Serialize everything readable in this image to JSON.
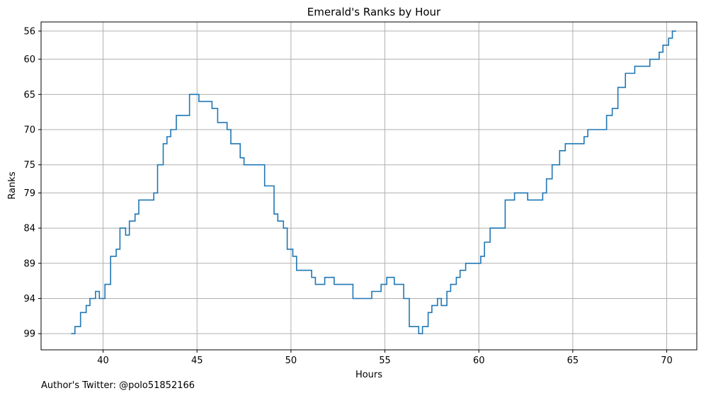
{
  "chart_data": {
    "type": "line",
    "step": "post",
    "title": "Emerald's Ranks by Hour",
    "xlabel": "Hours",
    "ylabel": "Ranks",
    "xlim": [
      36.7,
      71.6
    ],
    "ylim": [
      101.3,
      54.7
    ],
    "y_inverted": true,
    "grid": true,
    "line_color": "#1f77b4",
    "xticks": [
      40,
      45,
      50,
      55,
      60,
      65,
      70
    ],
    "yticks": [
      56,
      60,
      65,
      70,
      75,
      79,
      84,
      89,
      94,
      99
    ],
    "series": [
      {
        "x": [
          38.3,
          38.5,
          38.8,
          39.1,
          39.3,
          39.6,
          39.8,
          40.1,
          40.4,
          40.7,
          40.9,
          41.2,
          41.4,
          41.7,
          41.9,
          42.7,
          42.9,
          43.2,
          43.4,
          43.6,
          43.9,
          44.6,
          45.1,
          45.8,
          46.1,
          46.6,
          46.8,
          47.3,
          47.5,
          48.6,
          49.1,
          49.3,
          49.6,
          49.8,
          50.1,
          50.3,
          51.1,
          51.3,
          51.8,
          52.3,
          53.3,
          54.3,
          54.8,
          55.1,
          55.5,
          56.0,
          56.3,
          56.8,
          57.0,
          57.3,
          57.5,
          57.8,
          58.0,
          58.3,
          58.5,
          58.8,
          59.0,
          59.3,
          60.1,
          60.3,
          60.6,
          61.4,
          61.9,
          62.6,
          63.4,
          63.6,
          63.9,
          64.3,
          64.6,
          65.6,
          65.8,
          66.8,
          67.1,
          67.4,
          67.8,
          68.3,
          69.1,
          69.6,
          69.8,
          70.1,
          70.3,
          70.5
        ],
        "y": [
          99,
          98,
          96,
          95,
          94,
          93,
          94,
          92,
          88,
          87,
          84,
          85,
          83,
          82,
          80,
          79,
          75,
          72,
          71,
          70,
          68,
          65,
          66,
          67,
          69,
          70,
          72,
          74,
          75,
          78,
          82,
          83,
          84,
          87,
          88,
          90,
          91,
          92,
          91,
          92,
          94,
          93,
          92,
          91,
          92,
          94,
          98,
          99,
          98,
          96,
          95,
          94,
          95,
          93,
          92,
          91,
          90,
          89,
          88,
          86,
          84,
          80,
          79,
          80,
          79,
          77,
          75,
          73,
          72,
          71,
          70,
          68,
          67,
          64,
          62,
          61,
          60,
          59,
          58,
          57,
          56,
          56
        ]
      }
    ]
  },
  "footer": {
    "credit": "Author's Twitter: @polo51852166"
  }
}
